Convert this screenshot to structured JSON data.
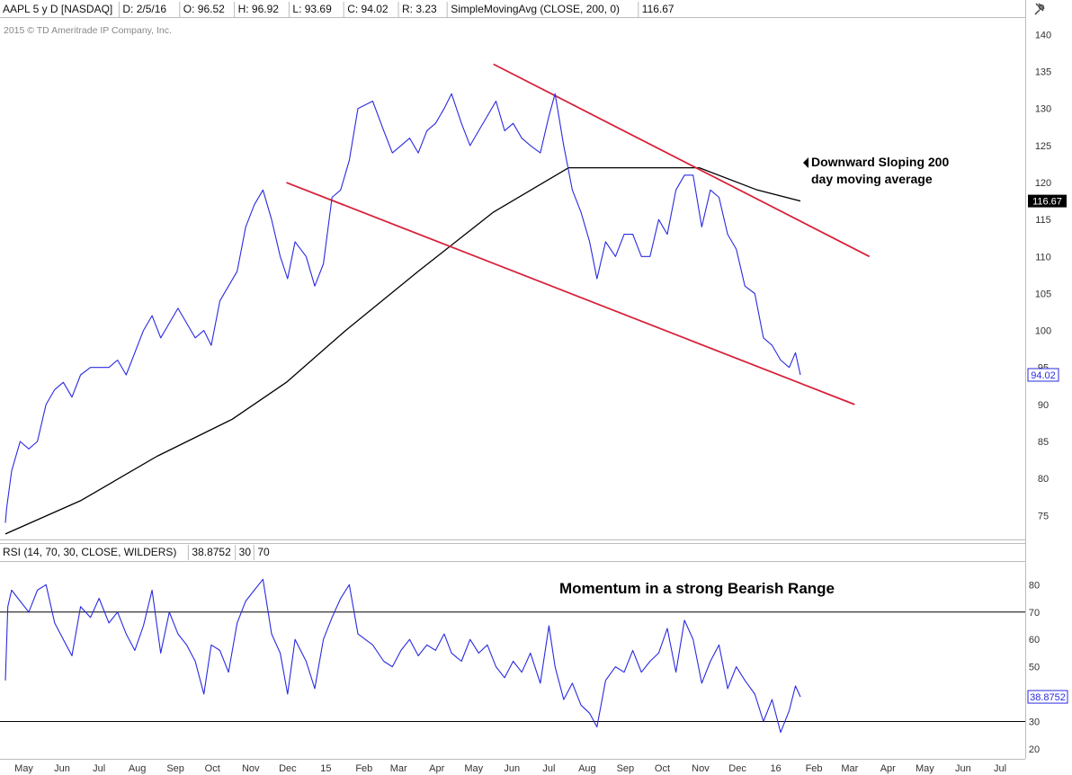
{
  "header": {
    "cells": [
      "AAPL 5 y D [NASDAQ]",
      "D: 2/5/16",
      "O: 96.52",
      "H: 96.92",
      "L: 93.69",
      "C: 94.02",
      "R: 3.23",
      "SimpleMovingAvg (CLOSE, 200, 0)",
      "116.67"
    ],
    "copyright": "2015 © TD Ameritrade IP Company, Inc."
  },
  "rsi_header": {
    "cells": [
      "RSI (14, 70, 30, CLOSE, WILDERS)",
      "38.8752",
      "30",
      "70"
    ]
  },
  "chart_data": [
    {
      "type": "line",
      "title": "",
      "xlabel": "",
      "ylabel": "",
      "ylim": [
        72,
        142
      ],
      "y_ticks": [
        75,
        80,
        85,
        90,
        95,
        100,
        105,
        110,
        115,
        120,
        125,
        130,
        135,
        140
      ],
      "x_ticks": [
        "May",
        "Jun",
        "Jul",
        "Aug",
        "Sep",
        "Oct",
        "Nov",
        "Dec",
        "15",
        "Feb",
        "Mar",
        "Apr",
        "May",
        "Jun",
        "Jul",
        "Aug",
        "Sep",
        "Oct",
        "Nov",
        "Dec",
        "16",
        "Feb",
        "Mar",
        "Apr",
        "May",
        "Jun",
        "Jul"
      ],
      "grid": false,
      "series": [
        {
          "name": "AAPL",
          "color": "#2a2ae0",
          "x": [
            "2014-05-01",
            "2014-05-02",
            "2014-05-06",
            "2014-05-13",
            "2014-05-20",
            "2014-05-27",
            "2014-06-03",
            "2014-06-10",
            "2014-06-17",
            "2014-06-24",
            "2014-07-01",
            "2014-07-09",
            "2014-07-16",
            "2014-07-24",
            "2014-07-31",
            "2014-08-07",
            "2014-08-14",
            "2014-08-21",
            "2014-08-28",
            "2014-09-04",
            "2014-09-11",
            "2014-09-18",
            "2014-09-25",
            "2014-10-02",
            "2014-10-09",
            "2014-10-15",
            "2014-10-22",
            "2014-10-29",
            "2014-11-05",
            "2014-11-12",
            "2014-11-19",
            "2014-11-26",
            "2014-12-03",
            "2014-12-10",
            "2014-12-16",
            "2014-12-22",
            "2014-12-31",
            "2015-01-07",
            "2015-01-14",
            "2015-01-21",
            "2015-01-28",
            "2015-02-04",
            "2015-02-11",
            "2015-02-23",
            "2015-03-04",
            "2015-03-11",
            "2015-03-18",
            "2015-03-25",
            "2015-04-01",
            "2015-04-08",
            "2015-04-15",
            "2015-04-22",
            "2015-04-28",
            "2015-05-06",
            "2015-05-13",
            "2015-05-20",
            "2015-05-27",
            "2015-06-03",
            "2015-06-10",
            "2015-06-17",
            "2015-06-24",
            "2015-07-01",
            "2015-07-09",
            "2015-07-16",
            "2015-07-21",
            "2015-07-28",
            "2015-08-04",
            "2015-08-11",
            "2015-08-18",
            "2015-08-24",
            "2015-08-31",
            "2015-09-08",
            "2015-09-15",
            "2015-09-22",
            "2015-09-29",
            "2015-10-06",
            "2015-10-13",
            "2015-10-20",
            "2015-10-27",
            "2015-11-03",
            "2015-11-10",
            "2015-11-17",
            "2015-11-24",
            "2015-12-01",
            "2015-12-08",
            "2015-12-15",
            "2015-12-22",
            "2015-12-30",
            "2016-01-06",
            "2016-01-13",
            "2016-01-20",
            "2016-01-27",
            "2016-02-01",
            "2016-02-05"
          ],
          "values": [
            74,
            76,
            81,
            85,
            84,
            85,
            90,
            92,
            93,
            91,
            94,
            95,
            95,
            95,
            96,
            94,
            97,
            100,
            102,
            99,
            101,
            103,
            101,
            99,
            100,
            98,
            104,
            106,
            108,
            114,
            117,
            119,
            115,
            110,
            107,
            112,
            110,
            106,
            109,
            118,
            119,
            123,
            130,
            131,
            127,
            124,
            125,
            126,
            124,
            127,
            128,
            130,
            132,
            128,
            125,
            127,
            129,
            131,
            127,
            128,
            126,
            125,
            124,
            129,
            132,
            125,
            119,
            116,
            112,
            107,
            112,
            110,
            113,
            113,
            110,
            110,
            115,
            113,
            119,
            121,
            121,
            114,
            119,
            118,
            113,
            111,
            106,
            105,
            99,
            98,
            96,
            95,
            97,
            94
          ]
        },
        {
          "name": "SimpleMovingAvg (CLOSE, 200, 0)",
          "color": "#000000",
          "x": [
            "2014-05-01",
            "2014-07-01",
            "2014-09-01",
            "2014-11-01",
            "2014-12-15",
            "2015-02-01",
            "2015-04-01",
            "2015-06-01",
            "2015-08-01",
            "2015-10-01",
            "2015-11-15",
            "2016-01-01",
            "2016-02-05"
          ],
          "values": [
            72.5,
            77,
            83,
            88,
            93,
            100,
            108,
            116,
            122,
            122,
            122,
            119,
            117.5
          ]
        }
      ],
      "trendlines": [
        {
          "name": "upper channel",
          "color": "#d8213a",
          "x": [
            "2015-06-01",
            "2016-04-01"
          ],
          "y": [
            136,
            110
          ]
        },
        {
          "name": "lower channel",
          "color": "#d8213a",
          "x": [
            "2014-12-15",
            "2016-03-20"
          ],
          "y": [
            120,
            90
          ]
        }
      ],
      "last_value": "94.02",
      "ma_value": "116.67",
      "annotation": [
        "Downward Sloping 200",
        "day moving average"
      ]
    },
    {
      "type": "line",
      "title": "",
      "ylim": [
        17,
        88
      ],
      "y_ticks": [
        20,
        30,
        40,
        50,
        60,
        70,
        80
      ],
      "levels": [
        70,
        30
      ],
      "series": [
        {
          "name": "RSI (14, 70, 30, CLOSE, WILDERS)",
          "color": "#2a2ae0",
          "x": [
            "2014-05-01",
            "2014-05-03",
            "2014-05-06",
            "2014-05-13",
            "2014-05-20",
            "2014-05-27",
            "2014-06-03",
            "2014-06-10",
            "2014-06-17",
            "2014-06-24",
            "2014-07-01",
            "2014-07-09",
            "2014-07-16",
            "2014-07-24",
            "2014-07-31",
            "2014-08-07",
            "2014-08-14",
            "2014-08-21",
            "2014-08-28",
            "2014-09-04",
            "2014-09-11",
            "2014-09-18",
            "2014-09-25",
            "2014-10-02",
            "2014-10-09",
            "2014-10-15",
            "2014-10-22",
            "2014-10-29",
            "2014-11-05",
            "2014-11-12",
            "2014-11-19",
            "2014-11-26",
            "2014-12-03",
            "2014-12-10",
            "2014-12-16",
            "2014-12-22",
            "2014-12-31",
            "2015-01-07",
            "2015-01-14",
            "2015-01-21",
            "2015-01-28",
            "2015-02-04",
            "2015-02-11",
            "2015-02-23",
            "2015-03-04",
            "2015-03-11",
            "2015-03-18",
            "2015-03-25",
            "2015-04-01",
            "2015-04-08",
            "2015-04-15",
            "2015-04-22",
            "2015-04-28",
            "2015-05-06",
            "2015-05-13",
            "2015-05-20",
            "2015-05-27",
            "2015-06-03",
            "2015-06-10",
            "2015-06-17",
            "2015-06-24",
            "2015-07-01",
            "2015-07-09",
            "2015-07-16",
            "2015-07-21",
            "2015-07-28",
            "2015-08-04",
            "2015-08-11",
            "2015-08-18",
            "2015-08-24",
            "2015-08-31",
            "2015-09-08",
            "2015-09-15",
            "2015-09-22",
            "2015-09-29",
            "2015-10-06",
            "2015-10-13",
            "2015-10-20",
            "2015-10-27",
            "2015-11-03",
            "2015-11-10",
            "2015-11-17",
            "2015-11-24",
            "2015-12-01",
            "2015-12-08",
            "2015-12-15",
            "2015-12-22",
            "2015-12-30",
            "2016-01-06",
            "2016-01-13",
            "2016-01-20",
            "2016-01-27",
            "2016-02-01",
            "2016-02-05"
          ],
          "values": [
            45,
            72,
            78,
            74,
            70,
            78,
            80,
            66,
            60,
            54,
            72,
            68,
            75,
            66,
            70,
            62,
            56,
            65,
            78,
            55,
            70,
            62,
            58,
            52,
            40,
            58,
            56,
            48,
            66,
            74,
            78,
            82,
            62,
            55,
            40,
            60,
            52,
            42,
            60,
            68,
            75,
            80,
            62,
            58,
            52,
            50,
            56,
            60,
            54,
            58,
            56,
            62,
            55,
            52,
            60,
            55,
            58,
            50,
            46,
            52,
            48,
            55,
            44,
            65,
            50,
            38,
            44,
            36,
            33,
            28,
            45,
            50,
            48,
            56,
            48,
            52,
            55,
            64,
            48,
            67,
            60,
            44,
            52,
            58,
            42,
            50,
            45,
            40,
            30,
            38,
            26,
            34,
            43,
            39
          ]
        }
      ],
      "last_value": "38.8752",
      "annotation": "Momentum in a strong Bearish Range"
    }
  ],
  "colors": {
    "price": "#2a2ae0",
    "sma": "#000000",
    "trend": "#d8213a",
    "level": "#000000"
  },
  "toolbar": {
    "icon": "pin-icon"
  }
}
